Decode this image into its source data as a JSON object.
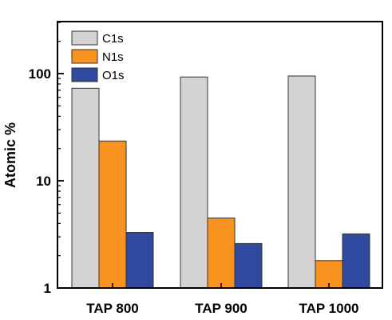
{
  "chart_data": {
    "type": "bar",
    "categories": [
      "TAP 800",
      "TAP 900",
      "TAP 1000"
    ],
    "series": [
      {
        "name": "C1s",
        "color": "#d3d3d3",
        "values": [
          73,
          93,
          95
        ]
      },
      {
        "name": "N1s",
        "color": "#f7931e",
        "values": [
          23.5,
          4.5,
          1.8
        ]
      },
      {
        "name": "O1s",
        "color": "#2f4a9e",
        "values": [
          3.3,
          2.6,
          3.2
        ]
      }
    ],
    "ylabel": "Atomic %",
    "yscale": "log",
    "ylim": [
      1,
      400
    ],
    "yticks": [
      {
        "value": 1,
        "label": "1"
      },
      {
        "value": 10,
        "label": "10"
      },
      {
        "value": 100,
        "label": "100"
      }
    ],
    "grid": false,
    "legend": "top-left"
  }
}
